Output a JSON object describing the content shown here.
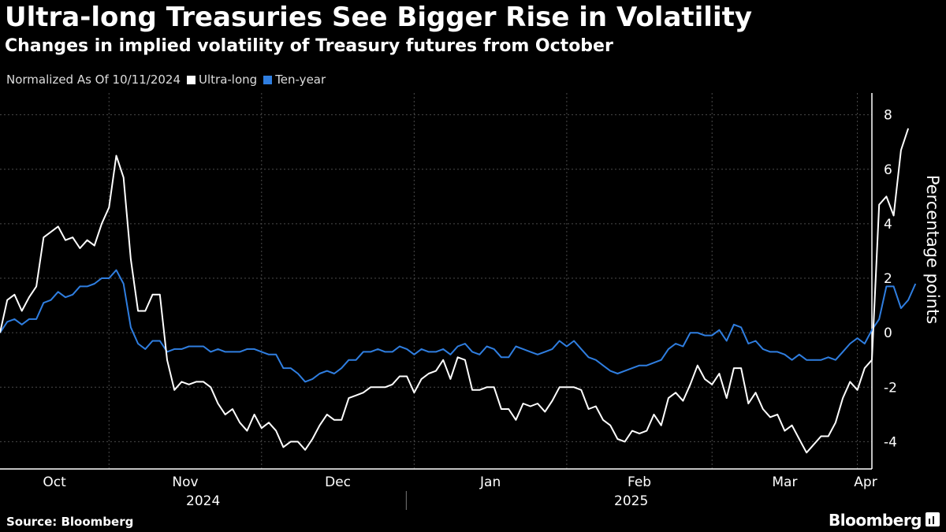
{
  "chart_data": {
    "type": "line",
    "title": "Ultra-long Treasuries See Bigger Rise in Volatility",
    "subtitle": "Changes in implied volatility of Treasury futures from October",
    "legend_note": "Normalized As Of 10/11/2024",
    "ylabel": "Percentage points",
    "ylim": [
      -5,
      8.8
    ],
    "yticks": [
      -4,
      -2,
      0,
      2,
      4,
      6,
      8
    ],
    "x_tick_labels": [
      "Oct",
      "Nov",
      "Dec",
      "Jan",
      "Feb",
      "Mar",
      "Apr"
    ],
    "year_labels": [
      "2024",
      "2025"
    ],
    "x_range_trading_days": [
      0,
      120
    ],
    "month_start_days": [
      0,
      15,
      36,
      57,
      78,
      98,
      118
    ],
    "series": [
      {
        "name": "Ultra-long",
        "color": "#ffffff",
        "values": [
          0,
          1.2,
          1.4,
          0.8,
          1.3,
          1.7,
          3.5,
          3.7,
          3.9,
          3.4,
          3.5,
          3.1,
          3.4,
          3.2,
          4.0,
          4.6,
          6.5,
          5.7,
          2.7,
          0.8,
          0.8,
          1.4,
          1.4,
          -1.0,
          -2.1,
          -1.8,
          -1.9,
          -1.8,
          -1.8,
          -2.0,
          -2.6,
          -3.0,
          -2.8,
          -3.3,
          -3.6,
          -3.0,
          -3.5,
          -3.3,
          -3.6,
          -4.2,
          -4.0,
          -4.0,
          -4.3,
          -3.9,
          -3.4,
          -3.0,
          -3.2,
          -3.2,
          -2.4,
          -2.3,
          -2.2,
          -2.0,
          -2.0,
          -2.0,
          -1.9,
          -1.6,
          -1.6,
          -2.2,
          -1.7,
          -1.5,
          -1.4,
          -1.0,
          -1.7,
          -0.9,
          -1.0,
          -2.1,
          -2.1,
          -2.0,
          -2.0,
          -2.8,
          -2.8,
          -3.2,
          -2.6,
          -2.7,
          -2.6,
          -2.9,
          -2.5,
          -2.0,
          -2.0,
          -2.0,
          -2.1,
          -2.8,
          -2.7,
          -3.2,
          -3.4,
          -3.9,
          -4.0,
          -3.6,
          -3.7,
          -3.6,
          -3.0,
          -3.4,
          -2.4,
          -2.2,
          -2.5,
          -1.9,
          -1.2,
          -1.7,
          -1.9,
          -1.5,
          -2.4,
          -1.3,
          -1.3,
          -2.6,
          -2.2,
          -2.8,
          -3.1,
          -3.0,
          -3.6,
          -3.4,
          -3.9,
          -4.4,
          -4.1,
          -3.8,
          -3.8,
          -3.3,
          -2.4,
          -1.8,
          -2.1,
          -1.3,
          -1.0,
          4.7,
          5.0,
          4.3,
          6.7,
          7.5
        ]
      },
      {
        "name": "Ten-year",
        "color": "#2f7ee0",
        "values": [
          0,
          0.4,
          0.5,
          0.3,
          0.5,
          0.5,
          1.1,
          1.2,
          1.5,
          1.3,
          1.4,
          1.7,
          1.7,
          1.8,
          2.0,
          2.0,
          2.3,
          1.8,
          0.2,
          -0.4,
          -0.6,
          -0.3,
          -0.3,
          -0.7,
          -0.6,
          -0.6,
          -0.5,
          -0.5,
          -0.5,
          -0.7,
          -0.6,
          -0.7,
          -0.7,
          -0.7,
          -0.6,
          -0.6,
          -0.7,
          -0.8,
          -0.8,
          -1.3,
          -1.3,
          -1.5,
          -1.8,
          -1.7,
          -1.5,
          -1.4,
          -1.5,
          -1.3,
          -1.0,
          -1.0,
          -0.7,
          -0.7,
          -0.6,
          -0.7,
          -0.7,
          -0.5,
          -0.6,
          -0.8,
          -0.6,
          -0.7,
          -0.7,
          -0.6,
          -0.8,
          -0.5,
          -0.4,
          -0.7,
          -0.8,
          -0.5,
          -0.6,
          -0.9,
          -0.9,
          -0.5,
          -0.6,
          -0.7,
          -0.8,
          -0.7,
          -0.6,
          -0.3,
          -0.5,
          -0.3,
          -0.6,
          -0.9,
          -1.0,
          -1.2,
          -1.4,
          -1.5,
          -1.4,
          -1.3,
          -1.2,
          -1.2,
          -1.1,
          -1.0,
          -0.6,
          -0.4,
          -0.5,
          0.0,
          0.0,
          -0.1,
          -0.1,
          0.1,
          -0.3,
          0.3,
          0.2,
          -0.4,
          -0.3,
          -0.6,
          -0.7,
          -0.7,
          -0.8,
          -1.0,
          -0.8,
          -1.0,
          -1.0,
          -1.0,
          -0.9,
          -1.0,
          -0.7,
          -0.4,
          -0.2,
          -0.4,
          0.1,
          0.5,
          1.7,
          1.7,
          0.9,
          1.2,
          1.8
        ]
      }
    ]
  },
  "footer": {
    "source": "Source: Bloomberg",
    "brand": "Bloomberg"
  }
}
